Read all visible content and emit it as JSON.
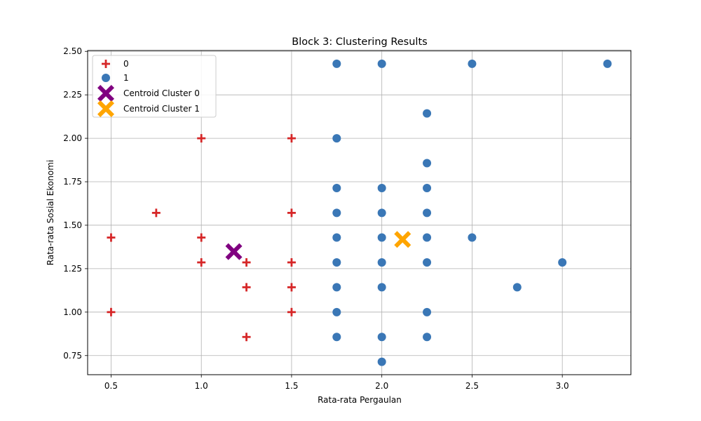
{
  "chart_data": {
    "type": "scatter",
    "title": "Block 3: Clustering Results",
    "xlabel": "Rata-rata Pergaulan",
    "ylabel": "Rata-rata Sosial Ekonomi",
    "xlim": [
      0.37,
      3.38
    ],
    "ylim": [
      0.64,
      2.505
    ],
    "xticks": [
      0.5,
      1.0,
      1.5,
      2.0,
      2.5,
      3.0
    ],
    "xtick_labels": [
      "0.5",
      "1.0",
      "1.5",
      "2.0",
      "2.5",
      "3.0"
    ],
    "yticks": [
      0.75,
      1.0,
      1.25,
      1.5,
      1.75,
      2.0,
      2.25,
      2.5
    ],
    "ytick_labels": [
      "0.75",
      "1.00",
      "1.25",
      "1.50",
      "1.75",
      "2.00",
      "2.25",
      "2.50"
    ],
    "grid": true,
    "legend_position": "top-left",
    "series": [
      {
        "name": "0",
        "marker": "plus",
        "color": "#d62728",
        "points": [
          [
            1.0,
            2.0
          ],
          [
            1.5,
            2.0
          ],
          [
            0.75,
            1.571
          ],
          [
            1.5,
            1.571
          ],
          [
            0.5,
            1.429
          ],
          [
            1.0,
            1.429
          ],
          [
            1.0,
            1.286
          ],
          [
            1.25,
            1.286
          ],
          [
            1.5,
            1.286
          ],
          [
            1.25,
            1.143
          ],
          [
            1.5,
            1.143
          ],
          [
            0.5,
            1.0
          ],
          [
            1.5,
            1.0
          ],
          [
            1.25,
            0.857
          ]
        ]
      },
      {
        "name": "1",
        "marker": "circle",
        "color": "#3a77b6",
        "points": [
          [
            1.75,
            2.429
          ],
          [
            2.0,
            2.429
          ],
          [
            2.5,
            2.429
          ],
          [
            3.25,
            2.429
          ],
          [
            2.25,
            2.143
          ],
          [
            1.75,
            2.0
          ],
          [
            2.25,
            1.857
          ],
          [
            1.75,
            1.714
          ],
          [
            2.0,
            1.714
          ],
          [
            2.25,
            1.714
          ],
          [
            1.75,
            1.571
          ],
          [
            2.0,
            1.571
          ],
          [
            2.25,
            1.571
          ],
          [
            1.75,
            1.429
          ],
          [
            2.0,
            1.429
          ],
          [
            2.25,
            1.429
          ],
          [
            2.5,
            1.429
          ],
          [
            1.75,
            1.286
          ],
          [
            2.0,
            1.286
          ],
          [
            2.25,
            1.286
          ],
          [
            3.0,
            1.286
          ],
          [
            1.75,
            1.143
          ],
          [
            2.0,
            1.143
          ],
          [
            2.75,
            1.143
          ],
          [
            1.75,
            1.0
          ],
          [
            2.25,
            1.0
          ],
          [
            1.75,
            0.857
          ],
          [
            2.0,
            0.857
          ],
          [
            2.25,
            0.857
          ],
          [
            2.0,
            0.714
          ]
        ]
      },
      {
        "name": "Centroid Cluster 0",
        "marker": "x-thick",
        "color": "#800080",
        "points": [
          [
            1.18,
            1.348
          ]
        ]
      },
      {
        "name": "Centroid Cluster 1",
        "marker": "x-thick",
        "color": "#ffa500",
        "points": [
          [
            2.115,
            1.418
          ]
        ]
      }
    ]
  }
}
